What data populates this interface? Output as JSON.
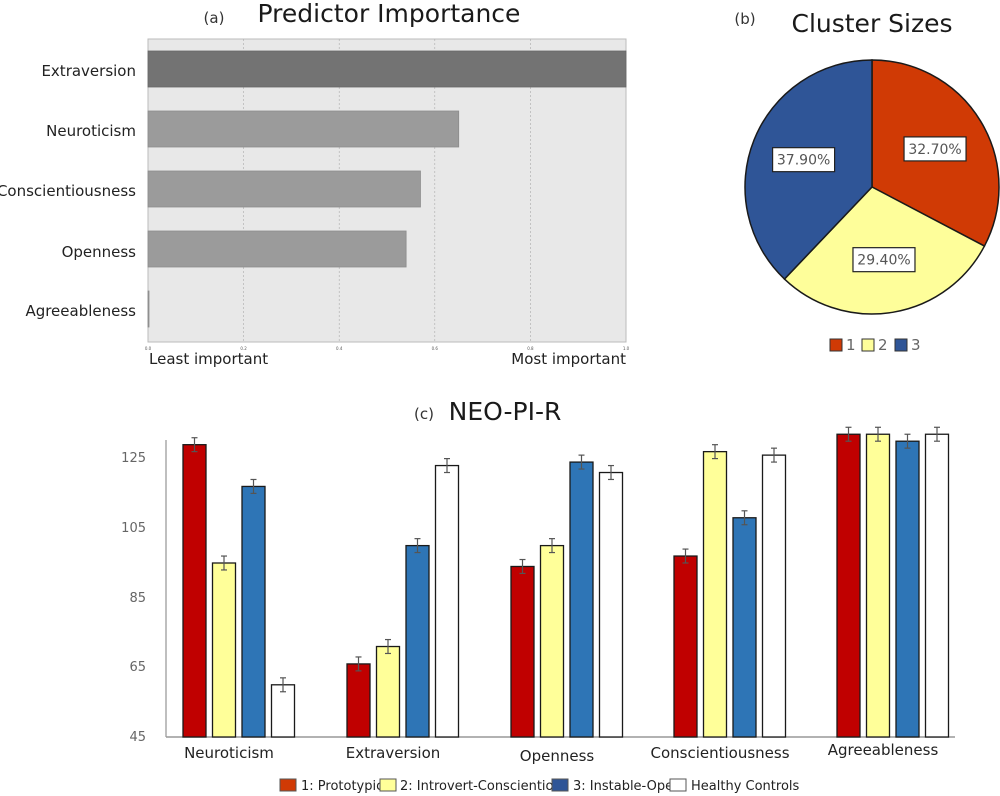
{
  "chart_data": [
    {
      "id": "a",
      "type": "bar",
      "orientation": "horizontal",
      "panel_label": "(a)",
      "title": "Predictor Importance",
      "categories": [
        "Extraversion",
        "Neuroticism",
        "Conscientiousness",
        "Openness",
        "Agreeableness"
      ],
      "values": [
        1.0,
        0.65,
        0.57,
        0.54,
        0.0
      ],
      "highlight_index": 0,
      "xlim": [
        0,
        1.0
      ],
      "xticks": [
        "0.0",
        "0.2",
        "0.4",
        "0.6",
        "0.8",
        "1.0"
      ],
      "xlabel_left": "Least important",
      "xlabel_right": "Most important",
      "grid": true,
      "colors": {
        "highlight": "#737373",
        "bar": "#9b9b9b",
        "background": "#e8e8e8",
        "grid": "#aaaaaa"
      }
    },
    {
      "id": "b",
      "type": "pie",
      "panel_label": "(b)",
      "title": "Cluster Sizes",
      "categories": [
        "1",
        "2",
        "3"
      ],
      "values": [
        32.7,
        29.4,
        37.9
      ],
      "labels": [
        "32.70%",
        "29.40%",
        "37.90%"
      ],
      "colors": [
        "#d03a05",
        "#fefe9a",
        "#2f5597"
      ],
      "legend": "bottom"
    },
    {
      "id": "c",
      "type": "bar",
      "orientation": "vertical",
      "panel_label": "(c)",
      "title": "NEO-PI-R",
      "categories": [
        "Neuroticism",
        "Extraversion",
        "Openness",
        "Conscientiousness",
        "Agreeableness"
      ],
      "ylim": [
        45,
        135
      ],
      "yticks": [
        "45",
        "65",
        "85",
        "105",
        "125"
      ],
      "ytick_values": [
        45,
        65,
        85,
        105,
        125
      ],
      "error_bar": 2,
      "legend": "bottom",
      "series": [
        {
          "name": "1: Prototypical",
          "color": "#c00000",
          "values": [
            129,
            66,
            94,
            97,
            132
          ]
        },
        {
          "name": "2: Introvert-Conscientious",
          "color": "#ffff99",
          "values": [
            95,
            71,
            100,
            127,
            132
          ]
        },
        {
          "name": "3: Instable-Open",
          "color": "#2e75b6",
          "values": [
            117,
            100,
            124,
            108,
            130
          ]
        },
        {
          "name": "Healthy Controls",
          "color": "#ffffff",
          "values": [
            60,
            123,
            121,
            126,
            132
          ]
        }
      ],
      "legend_colors": [
        "#d03a05",
        "#ffff99",
        "#2f5597",
        "#ffffff"
      ]
    }
  ]
}
